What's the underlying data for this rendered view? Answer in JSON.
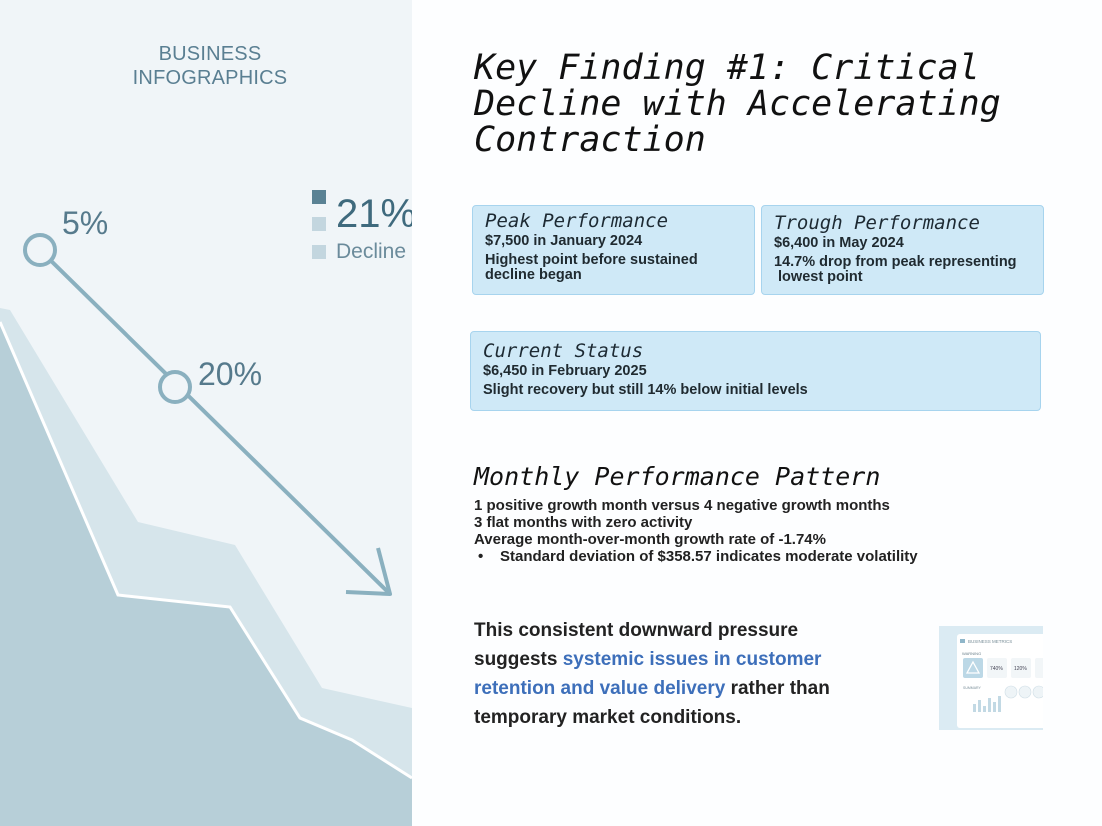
{
  "left": {
    "brand_line1": "BUSINESS",
    "brand_line2": "INFOGRAPHICS",
    "point_labels": [
      "5%",
      "20%"
    ],
    "legend_value": "21%",
    "legend_label": "Decline",
    "colors": {
      "area_dark": "#b7cfd8",
      "area_light": "#d6e5eb",
      "arrow": "#8ab0bf",
      "legend_dark": "#5a8294",
      "legend_light": "#c3d6df"
    }
  },
  "title": {
    "line1": "Key Finding #1: Critical",
    "line2": "Decline with Accelerating",
    "line3": "Contraction"
  },
  "cards": {
    "peak": {
      "title": "Peak Performance",
      "value": "$7,500 in January 2024",
      "note_line1": "Highest point before sustained",
      "note_line2": "decline began"
    },
    "trough": {
      "title": "Trough Performance",
      "value": "$6,400 in May 2024",
      "note_line1": "14.7% drop from peak representing",
      "note_line2": " lowest point"
    },
    "status": {
      "title": "Current Status",
      "value": "$6,450 in February 2025",
      "note": "Slight recovery but still 14% below initial levels"
    }
  },
  "pattern": {
    "title": "Monthly Performance Pattern",
    "line1": "1 positive growth month versus 4 negative growth months",
    "line2": "3 flat months with zero activity",
    "line3": "Average month-over-month growth rate of -1.74%",
    "bullet_mark": "•",
    "bullet": "Standard deviation of $358.57 indicates moderate volatility"
  },
  "conclusion": {
    "part1": "This consistent downward pressure suggests ",
    "highlight": "systemic issues in customer retention and value delivery",
    "part2": " rather than temporary market conditions."
  },
  "thumbnail": {
    "header": "BUSINESS METRICS",
    "tag": "WARNING",
    "stat1": "740%",
    "stat2": "120%",
    "sublabel": "SUMMARY"
  }
}
